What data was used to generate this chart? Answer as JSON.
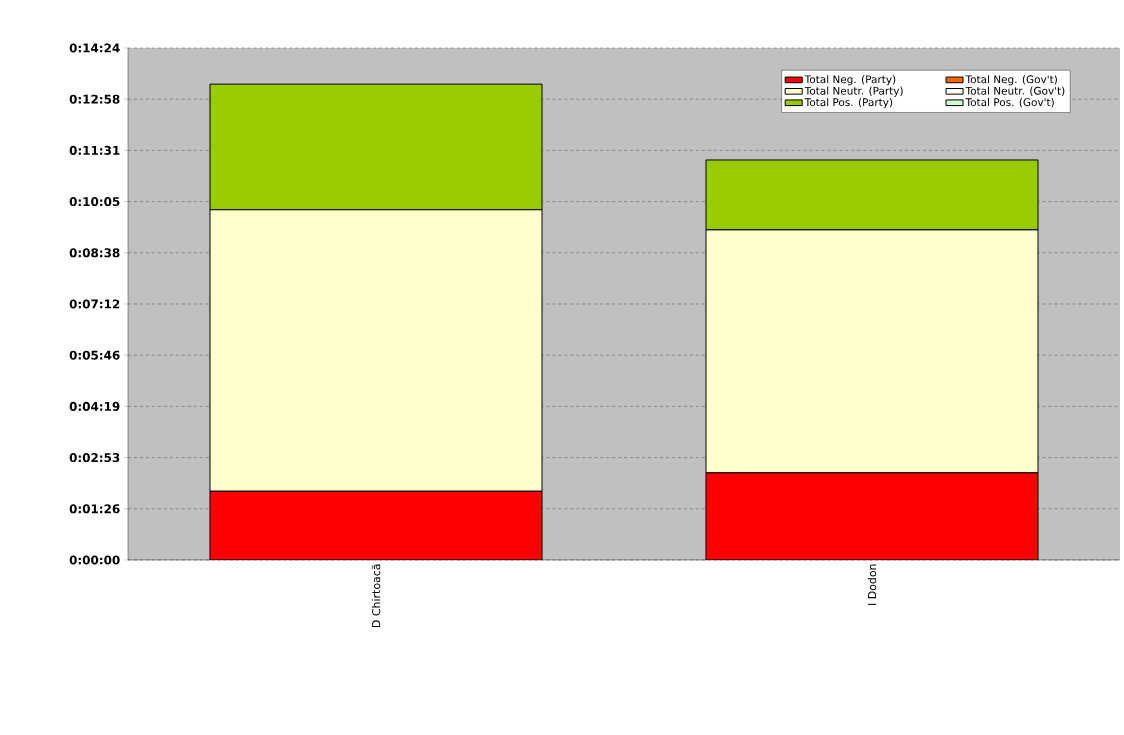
{
  "chart_data": {
    "type": "bar",
    "stacked": true,
    "categories": [
      "D Chirtoacă",
      "I Dodon"
    ],
    "series": [
      {
        "name": "Total Neg. (Party)",
        "color": "#ff0000",
        "values": [
          116,
          147
        ]
      },
      {
        "name": "Total Neg. (Gov't)",
        "color": "#ff6600",
        "values": [
          0,
          0
        ]
      },
      {
        "name": "Total Neutr. (Party)",
        "color": "#ffffcc",
        "values": [
          475,
          410
        ]
      },
      {
        "name": "Total Neutr. (Gov't)",
        "color": "#ffffff",
        "values": [
          0,
          0
        ]
      },
      {
        "name": "Total Pos. (Party)",
        "color": "#99cc00",
        "values": [
          212,
          118
        ]
      },
      {
        "name": "Total Pos. (Gov't)",
        "color": "#ccffcc",
        "values": [
          0,
          0
        ]
      }
    ],
    "ylim": [
      0,
      864
    ],
    "yticks": [
      {
        "value": 0,
        "label": "0:00:00"
      },
      {
        "value": 86.4,
        "label": "0:01:26"
      },
      {
        "value": 172.8,
        "label": "0:02:53"
      },
      {
        "value": 259.2,
        "label": "0:04:19"
      },
      {
        "value": 345.6,
        "label": "0:05:46"
      },
      {
        "value": 432,
        "label": "0:07:12"
      },
      {
        "value": 518.4,
        "label": "0:08:38"
      },
      {
        "value": 604.8,
        "label": "0:10:05"
      },
      {
        "value": 691.2,
        "label": "0:11:31"
      },
      {
        "value": 777.6,
        "label": "0:12:58"
      },
      {
        "value": 864,
        "label": "0:14:24"
      }
    ],
    "grid": "y",
    "legend": "top right"
  }
}
